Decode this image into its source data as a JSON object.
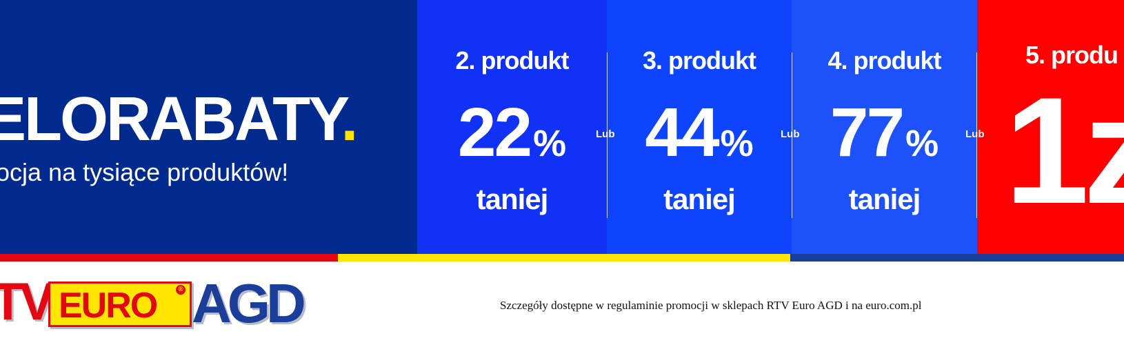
{
  "hero": {
    "title": "ELORABATY",
    "title_dot": ".",
    "subtitle": "ocja na tysiące produktów!"
  },
  "offers": [
    {
      "heading": "2. produkt",
      "number": "22",
      "unit": "%",
      "footer": "taniej"
    },
    {
      "heading": "3. produkt",
      "number": "44",
      "unit": "%",
      "footer": "taniej"
    },
    {
      "heading": "4. produkt",
      "number": "77",
      "unit": "%",
      "footer": "taniej"
    },
    {
      "heading": "5. produ",
      "number": "1z"
    }
  ],
  "separators": [
    "Lub",
    "Lub",
    "Lub"
  ],
  "logo": {
    "part1": "TV",
    "part2": "EURO",
    "registered": "®",
    "part3": "AGD"
  },
  "disclaimer": "Szczegóły dostępne w regulaminie promocji w sklepach RTV Euro AGD i na euro.com.pl",
  "colors": {
    "hero_bg": "#002a8d",
    "offer1_bg": "#1131f5",
    "offer2_bg": "#0f44ff",
    "offer3_bg": "#1d52fa",
    "offer4_bg": "#ff0000",
    "accent_yellow": "#ffe500",
    "brand_red": "#e30613",
    "brand_blue": "#1b3f98"
  }
}
